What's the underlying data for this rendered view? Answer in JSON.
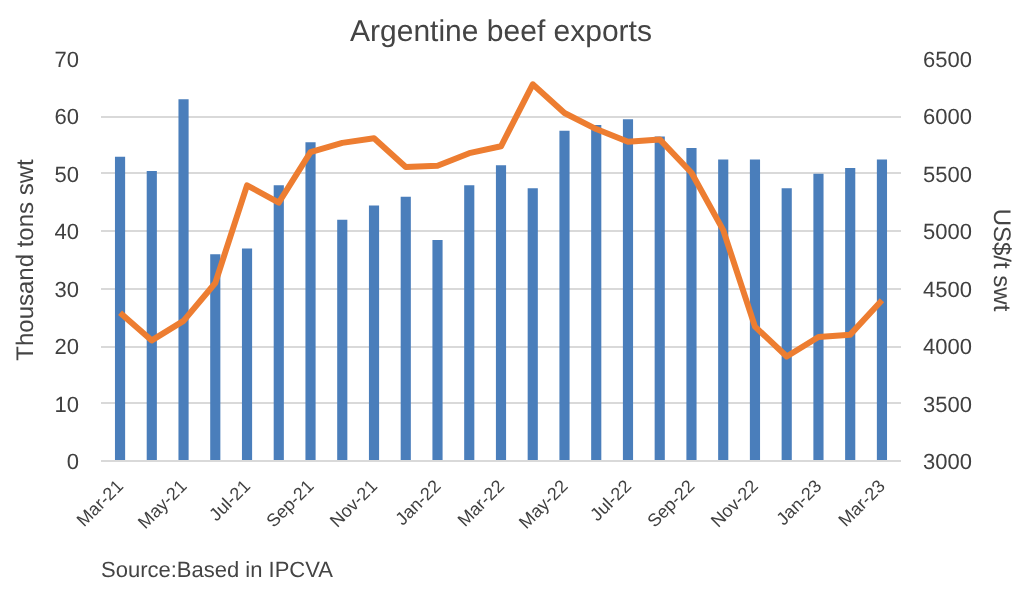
{
  "chart_data": {
    "type": "bar",
    "title": "Argentine beef exports",
    "ylabel": "Thousand tons swt",
    "y2label": "US$/t swt",
    "categories": [
      "Mar-21",
      null,
      "May-21",
      null,
      "Jul-21",
      null,
      "Sep-21",
      null,
      "Nov-21",
      null,
      "Jan-22",
      null,
      "Mar-22",
      null,
      "May-22",
      null,
      "Jul-22",
      null,
      "Sep-22",
      null,
      "Nov-22",
      null,
      "Jan-23",
      null,
      "Mar-23"
    ],
    "series": [
      {
        "color": "#4a7ebb",
        "values": [
          53,
          50.5,
          63,
          36,
          37,
          48,
          55.5,
          42,
          44.5,
          46,
          38.5,
          48,
          51.5,
          47.5,
          57.5,
          58.5,
          59.5,
          56.5,
          54.5,
          52.5,
          52.5,
          47.5,
          50,
          51,
          52.5
        ]
      },
      {
        "type": "line",
        "axis": "y2",
        "color": "#ed7d31",
        "values": [
          4290,
          4050,
          4220,
          4550,
          5400,
          5250,
          5690,
          5770,
          5810,
          5560,
          5570,
          5680,
          5740,
          6280,
          6030,
          5890,
          5780,
          5800,
          5510,
          5010,
          4170,
          3910,
          4080,
          4100,
          4400
        ]
      }
    ],
    "ylim": [
      0,
      70
    ],
    "yticks": [
      0,
      10,
      20,
      30,
      40,
      50,
      60,
      70
    ],
    "y2lim": [
      3000,
      6500
    ],
    "y2ticks": [
      3000,
      3500,
      4000,
      4500,
      5000,
      5500,
      6000,
      6500
    ],
    "grid": "y",
    "line_style": "solid",
    "marker": "none",
    "annotations": [
      "Source:Based in IPCVA"
    ]
  }
}
